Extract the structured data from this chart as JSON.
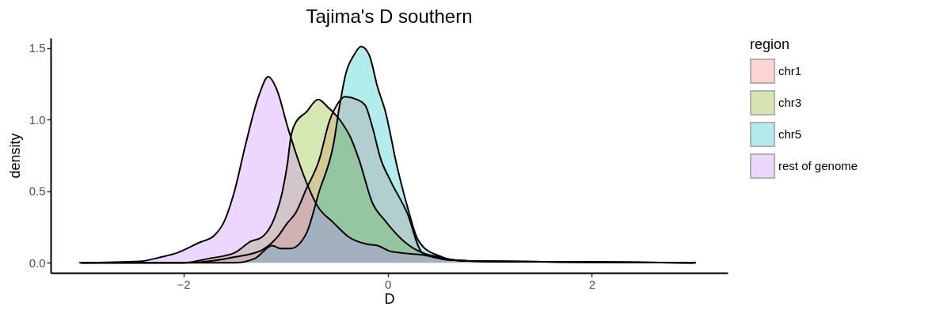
{
  "chart_data": {
    "type": "area",
    "title": "Tajima's D southern",
    "xlabel": "D",
    "ylabel": "density",
    "legend_title": "region",
    "legend": "right",
    "grid": false,
    "xlim": [
      -3.3,
      3.33
    ],
    "xticks": [
      {
        "value": -2,
        "label": "−2"
      },
      0,
      2
    ],
    "ylim": [
      -0.07,
      1.57
    ],
    "yticks": [
      {
        "value": 0,
        "label": "0.0"
      },
      {
        "value": 0.5,
        "label": "0.5"
      },
      {
        "value": 1,
        "label": "1.0"
      },
      {
        "value": 1.5,
        "label": "1.5"
      }
    ],
    "series": [
      {
        "name": "chr1",
        "color": "#f8766d",
        "x": [
          -3,
          -2,
          -1.5,
          -1.23,
          -1.08,
          -0.98,
          -0.9,
          -0.8,
          -0.67,
          -0.57,
          -0.49,
          -0.42,
          -0.3,
          -0.22,
          -0.15,
          -0.07,
          0.03,
          0.19,
          0.34,
          0.5,
          0.65,
          1,
          2,
          3
        ],
        "values": [
          0,
          0,
          0.04,
          0.09,
          0.18,
          0.28,
          0.35,
          0.51,
          0.72,
          0.99,
          1.11,
          1.16,
          1.14,
          1.1,
          0.95,
          0.73,
          0.57,
          0.35,
          0.07,
          0.04,
          0.02,
          0.01,
          0.005,
          0
        ]
      },
      {
        "name": "chr3",
        "color": "#7cae00",
        "x": [
          -3,
          -2,
          -1.75,
          -1.5,
          -1.34,
          -1.23,
          -1.11,
          -1.03,
          -0.98,
          -0.95,
          -0.9,
          -0.8,
          -0.68,
          -0.59,
          -0.46,
          -0.36,
          -0.28,
          -0.15,
          -0.02,
          0.16,
          0.34,
          0.5,
          0.65,
          1,
          2,
          3
        ],
        "values": [
          0,
          0,
          0.03,
          0.07,
          0.15,
          0.18,
          0.31,
          0.5,
          0.7,
          0.87,
          0.98,
          1.05,
          1.14,
          1.09,
          0.99,
          0.87,
          0.72,
          0.42,
          0.29,
          0.15,
          0.07,
          0.04,
          0.02,
          0.01,
          0.005,
          0
        ]
      },
      {
        "name": "chr5",
        "color": "#00bfc4",
        "x": [
          -3,
          -2,
          -1.5,
          -1.3,
          -1.13,
          -1.05,
          -0.95,
          -0.8,
          -0.67,
          -0.53,
          -0.47,
          -0.41,
          -0.33,
          -0.26,
          -0.18,
          -0.1,
          -0.02,
          0.09,
          0.19,
          0.29,
          0.35,
          0.5,
          0.63,
          1,
          2,
          3
        ],
        "values": [
          0,
          0,
          0,
          0.03,
          0.12,
          0.1,
          0.1,
          0.2,
          0.5,
          0.83,
          1.1,
          1.32,
          1.45,
          1.51,
          1.45,
          1.23,
          1.05,
          0.68,
          0.4,
          0.17,
          0.11,
          0.05,
          0.02,
          0.01,
          0.005,
          0
        ]
      },
      {
        "name": "rest of genome",
        "color": "#c77cff",
        "x": [
          -3.02,
          -2.43,
          -2.22,
          -2.06,
          -1.85,
          -1.7,
          -1.6,
          -1.5,
          -1.39,
          -1.26,
          -1.17,
          -1.08,
          -0.98,
          -0.8,
          -0.69,
          -0.53,
          -0.38,
          -0.2,
          -0.1,
          0.03,
          0.34,
          0.6,
          1,
          2,
          3.02
        ],
        "values": [
          0,
          0.01,
          0.04,
          0.07,
          0.14,
          0.19,
          0.29,
          0.5,
          0.83,
          1.17,
          1.3,
          1.2,
          0.95,
          0.57,
          0.4,
          0.28,
          0.18,
          0.13,
          0.12,
          0.08,
          0.055,
          0.02,
          0.01,
          0.005,
          0
        ]
      }
    ]
  }
}
